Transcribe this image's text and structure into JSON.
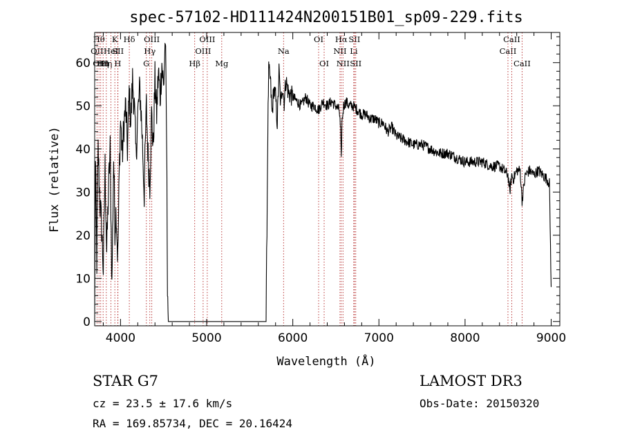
{
  "chart_data": {
    "type": "line",
    "title": "spec-57102-HD111424N200151B01_sp09-229.fits",
    "xlabel": "Wavelength (Å)",
    "ylabel": "Flux (relative)",
    "xlim": [
      3700,
      9100
    ],
    "ylim": [
      -1,
      67
    ],
    "xticks": [
      4000,
      5000,
      6000,
      7000,
      8000,
      9000
    ],
    "yticks": [
      0,
      10,
      20,
      30,
      40,
      50,
      60
    ],
    "grid": false,
    "line_color": "#000000",
    "marker_color": "#b22222",
    "spectrum": {
      "x": [
        3700,
        3710,
        3725,
        3740,
        3760,
        3780,
        3800,
        3820,
        3840,
        3860,
        3880,
        3900,
        3920,
        3935,
        3950,
        3968,
        3985,
        4000,
        4020,
        4040,
        4060,
        4080,
        4100,
        4120,
        4140,
        4160,
        4180,
        4200,
        4225,
        4250,
        4275,
        4300,
        4320,
        4340,
        4360,
        4380,
        4400,
        4420,
        4440,
        4460,
        4480,
        4500,
        4520,
        4535,
        4545,
        4555,
        5690,
        5700,
        5710,
        5720,
        5740,
        5760,
        5780,
        5800,
        5820,
        5840,
        5860,
        5880,
        5900,
        5920,
        5950,
        6000,
        6050,
        6100,
        6150,
        6200,
        6250,
        6300,
        6350,
        6400,
        6450,
        6500,
        6540,
        6555,
        6563,
        6570,
        6590,
        6620,
        6650,
        6700,
        6750,
        6800,
        6850,
        6900,
        6950,
        7000,
        7050,
        7100,
        7150,
        7200,
        7300,
        7400,
        7500,
        7600,
        7700,
        7800,
        7900,
        8000,
        8100,
        8200,
        8300,
        8400,
        8450,
        8498,
        8520,
        8542,
        8560,
        8600,
        8640,
        8662,
        8700,
        8750,
        8800,
        8850,
        8900,
        8950,
        8980,
        9000
      ],
      "y": [
        0,
        36,
        14,
        40,
        28,
        22,
        12,
        36,
        16,
        30,
        40,
        8,
        38,
        22,
        26,
        14,
        34,
        47,
        38,
        46,
        50,
        40,
        53,
        46,
        56,
        50,
        38,
        48,
        54,
        44,
        30,
        50,
        38,
        32,
        48,
        40,
        56,
        48,
        58,
        52,
        60,
        54,
        66,
        42,
        10,
        0,
        0,
        22,
        44,
        58,
        56,
        48,
        54,
        52,
        46,
        58,
        50,
        55,
        51,
        56,
        53,
        52,
        51,
        50,
        52,
        50,
        50,
        49,
        51,
        50,
        51,
        50,
        49,
        44,
        37,
        46,
        50,
        51,
        50,
        50,
        49,
        48,
        48,
        47,
        47,
        46,
        46,
        44,
        45,
        43,
        42,
        41,
        41,
        40,
        39,
        39,
        38,
        37,
        37,
        37,
        36,
        36,
        35,
        34,
        30,
        34,
        33,
        35,
        35,
        28,
        34,
        35,
        34,
        35,
        34,
        33,
        32,
        8
      ]
    },
    "lines": [
      {
        "wl": 3727,
        "labels": [
          "OII"
        ],
        "row": 1
      },
      {
        "wl": 3750,
        "labels": [
          "Hθ"
        ],
        "row": 0
      },
      {
        "wl": 3770,
        "labels": [
          "OIII"
        ],
        "row": 2
      },
      {
        "wl": 3798,
        "labels": [
          "Hη"
        ],
        "row": 2
      },
      {
        "wl": 3835,
        "labels": [
          "Hη"
        ],
        "row": 2
      },
      {
        "wl": 3889,
        "labels": [
          "HeI"
        ],
        "row": 1
      },
      {
        "wl": 3934,
        "labels": [
          "K"
        ],
        "row": 0
      },
      {
        "wl": 3968,
        "labels": [
          "H"
        ],
        "row": 2
      },
      {
        "wl": 3970,
        "labels": [
          "SII"
        ],
        "row": 1
      },
      {
        "wl": 4102,
        "labels": [
          "Hδ"
        ],
        "row": 0
      },
      {
        "wl": 4300,
        "labels": [
          "G"
        ],
        "row": 2
      },
      {
        "wl": 4340,
        "labels": [
          "Hγ"
        ],
        "row": 1
      },
      {
        "wl": 4363,
        "labels": [
          "OIII"
        ],
        "row": 0
      },
      {
        "wl": 4861,
        "labels": [
          "Hβ"
        ],
        "row": 2
      },
      {
        "wl": 4959,
        "labels": [
          "OIII"
        ],
        "row": 1
      },
      {
        "wl": 5007,
        "labels": [
          "OIII"
        ],
        "row": 0
      },
      {
        "wl": 5175,
        "labels": [
          "Mg"
        ],
        "row": 2
      },
      {
        "wl": 5893,
        "labels": [
          "Na"
        ],
        "row": 1
      },
      {
        "wl": 6300,
        "labels": [
          "OI"
        ],
        "row": 0
      },
      {
        "wl": 6364,
        "labels": [
          "OI"
        ],
        "row": 2
      },
      {
        "wl": 6548,
        "labels": [
          "NII"
        ],
        "row": 1
      },
      {
        "wl": 6563,
        "labels": [
          "Hα"
        ],
        "row": 0
      },
      {
        "wl": 6583,
        "labels": [
          "NII"
        ],
        "row": 2
      },
      {
        "wl": 6708,
        "labels": [
          "Li"
        ],
        "row": 1
      },
      {
        "wl": 6716,
        "labels": [
          "SII"
        ],
        "row": 0
      },
      {
        "wl": 6731,
        "labels": [
          "SII"
        ],
        "row": 2
      },
      {
        "wl": 8498,
        "labels": [
          "CaII"
        ],
        "row": 1
      },
      {
        "wl": 8542,
        "labels": [
          "CaII"
        ],
        "row": 0
      },
      {
        "wl": 8662,
        "labels": [
          "CaII"
        ],
        "row": 2
      }
    ]
  },
  "info": {
    "class_line": "STAR    G7",
    "cz_line": "cz = 23.5 ± 17.6 km/s",
    "radec_line": "RA = 169.85734, DEC =  20.16424",
    "survey": "LAMOST DR3",
    "obs_date": "Obs-Date: 20150320"
  }
}
